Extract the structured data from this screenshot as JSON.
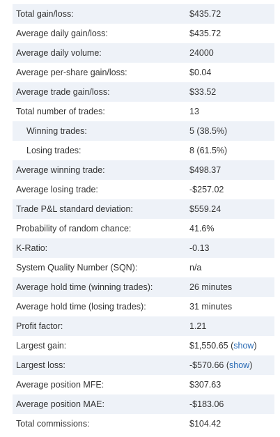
{
  "stats": [
    {
      "label": "Total gain/loss:",
      "value": "$435.72"
    },
    {
      "label": "Average daily gain/loss:",
      "value": "$435.72"
    },
    {
      "label": "Average daily volume:",
      "value": "24000"
    },
    {
      "label": "Average per-share gain/loss:",
      "value": "$0.04"
    },
    {
      "label": "Average trade gain/loss:",
      "value": "$33.52"
    },
    {
      "label": "Total number of trades:",
      "value": "13"
    },
    {
      "label": "Winning trades:",
      "value": "5 (38.5%)"
    },
    {
      "label": "Losing trades:",
      "value": "8 (61.5%)"
    },
    {
      "label": "Average winning trade:",
      "value": "$498.37"
    },
    {
      "label": "Average losing trade:",
      "value": "-$257.02"
    },
    {
      "label": "Trade P&L standard deviation:",
      "value": "$559.24"
    },
    {
      "label": "Probability of random chance:",
      "value": "41.6%"
    },
    {
      "label": "K-Ratio:",
      "value": "-0.13"
    },
    {
      "label": "System Quality Number (SQN):",
      "value": "n/a"
    },
    {
      "label": "Average hold time (winning trades):",
      "value": "26 minutes"
    },
    {
      "label": "Average hold time (losing trades):",
      "value": "31 minutes"
    },
    {
      "label": "Profit factor:",
      "value": "1.21"
    },
    {
      "label": "Largest gain:",
      "value": "$1,550.65",
      "link": "show"
    },
    {
      "label": "Largest loss:",
      "value": "-$570.66",
      "link": "show"
    },
    {
      "label": "Average position MFE:",
      "value": "$307.63"
    },
    {
      "label": "Average position MAE:",
      "value": "-$183.06"
    },
    {
      "label": "Total commissions:",
      "value": "$104.42"
    }
  ],
  "paren_open": "(",
  "paren_close": ")"
}
